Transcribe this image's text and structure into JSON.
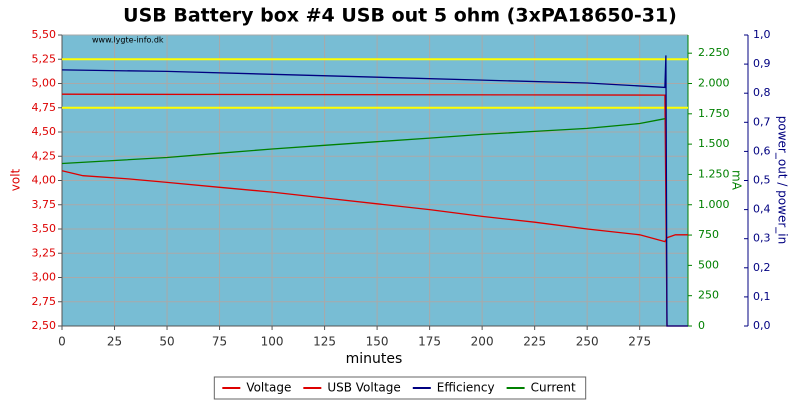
{
  "chart_data": {
    "type": "line",
    "title": "USB Battery box #4 USB out 5 ohm (3xPA18650-31)",
    "annotation": "www.lygte-info.dk",
    "x_label": "minutes",
    "y_label": "volt",
    "y2_label": "mA",
    "y3_label": "power_out / power_in",
    "xlim": [
      0,
      298
    ],
    "xticks": [
      0,
      25,
      50,
      75,
      100,
      125,
      150,
      175,
      200,
      225,
      250,
      275
    ],
    "ylim": [
      2.5,
      5.5
    ],
    "yticks": [
      {
        "value": 2.5,
        "label": "2,50"
      },
      {
        "value": 2.75,
        "label": "2,75"
      },
      {
        "value": 3,
        "label": "3,00"
      },
      {
        "value": 3.25,
        "label": "3,25"
      },
      {
        "value": 3.5,
        "label": "3,50"
      },
      {
        "value": 3.75,
        "label": "3,75"
      },
      {
        "value": 4,
        "label": "4,00"
      },
      {
        "value": 4.25,
        "label": "4,25"
      },
      {
        "value": 4.5,
        "label": "4,50"
      },
      {
        "value": 4.75,
        "label": "4,75"
      },
      {
        "value": 5,
        "label": "5,00"
      },
      {
        "value": 5.25,
        "label": "5,25"
      },
      {
        "value": 5.5,
        "label": "5,50"
      }
    ],
    "y2lim": [
      0,
      2400
    ],
    "y2ticks": [
      0,
      250,
      500,
      750,
      {
        "value": 1000,
        "label": "1.000"
      },
      {
        "value": 1250,
        "label": "1.250"
      },
      {
        "value": 1500,
        "label": "1.500"
      },
      {
        "value": 1750,
        "label": "1.750"
      },
      {
        "value": 2000,
        "label": "2.000"
      },
      {
        "value": 2250,
        "label": "2.250"
      }
    ],
    "y3lim": [
      0,
      1
    ],
    "y3ticks": [
      {
        "value": 0,
        "label": "0,0"
      },
      {
        "value": 0.1,
        "label": "0,1"
      },
      {
        "value": 0.2,
        "label": "0,2"
      },
      {
        "value": 0.3,
        "label": "0,3"
      },
      {
        "value": 0.4,
        "label": "0,4"
      },
      {
        "value": 0.5,
        "label": "0,5"
      },
      {
        "value": 0.6,
        "label": "0,6"
      },
      {
        "value": 0.7,
        "label": "0,7"
      },
      {
        "value": 0.8,
        "label": "0,8"
      },
      {
        "value": 0.9,
        "label": "0,9"
      },
      {
        "value": 1,
        "label": "1,0"
      }
    ],
    "grid": true,
    "reference_lines": [
      {
        "value": 5.25,
        "color": "#ffff00"
      },
      {
        "value": 4.75,
        "color": "#ffff00"
      }
    ],
    "series": [
      {
        "name": "Voltage",
        "color": "#dd0000",
        "axis": "y",
        "x": [
          0,
          10,
          30,
          50,
          75,
          100,
          125,
          150,
          175,
          200,
          225,
          250,
          275,
          287,
          288,
          292,
          298
        ],
        "values": [
          4.1,
          4.05,
          4.02,
          3.98,
          3.93,
          3.88,
          3.82,
          3.76,
          3.7,
          3.63,
          3.57,
          3.5,
          3.44,
          3.37,
          3.41,
          3.44,
          3.44
        ]
      },
      {
        "name": "USB Voltage",
        "color": "#dd0000",
        "axis": "y",
        "x": [
          0,
          287,
          288,
          298
        ],
        "values": [
          4.89,
          4.88,
          2.5,
          2.5
        ]
      },
      {
        "name": "Efficiency",
        "color": "#000080",
        "axis": "y3",
        "x": [
          0,
          50,
          100,
          150,
          200,
          250,
          287,
          287.5,
          288,
          298
        ],
        "values": [
          0.88,
          0.875,
          0.865,
          0.855,
          0.845,
          0.835,
          0.82,
          0.93,
          0,
          0
        ]
      },
      {
        "name": "Current",
        "color": "#008000",
        "axis": "y2",
        "x": [
          0,
          25,
          50,
          75,
          100,
          125,
          150,
          175,
          200,
          225,
          250,
          275,
          287
        ],
        "values": [
          1340,
          1365,
          1390,
          1425,
          1460,
          1490,
          1520,
          1550,
          1580,
          1605,
          1630,
          1670,
          1710
        ]
      }
    ]
  }
}
